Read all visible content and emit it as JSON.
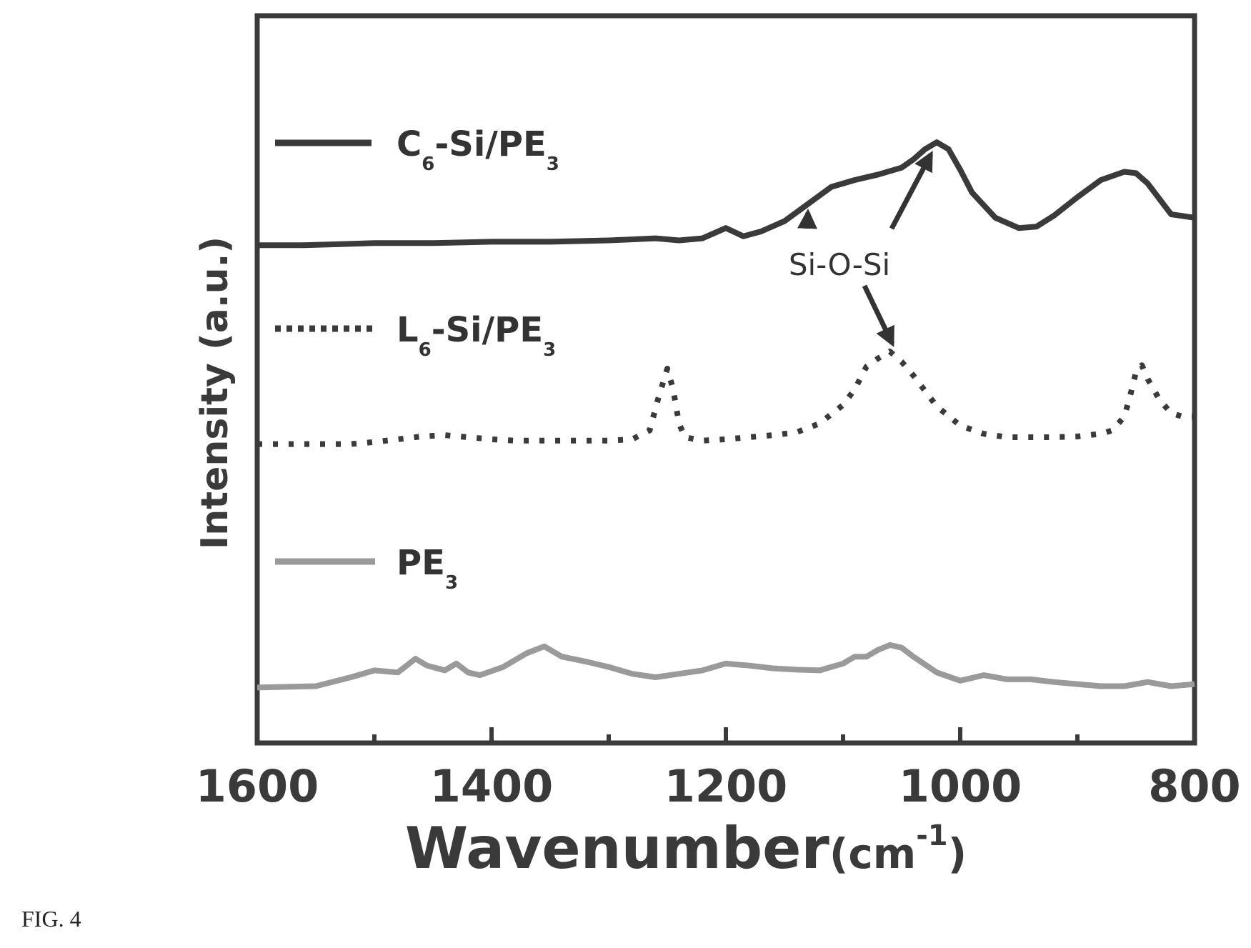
{
  "caption": "FIG. 4",
  "chart_data": {
    "type": "line",
    "title": "",
    "xlabel_main": "Wavenumber",
    "xlabel_unit": "(cm",
    "xlabel_exp": "-1",
    "xlabel_close": ")",
    "ylabel": "Intensity (a.u.)",
    "xlim": [
      1600,
      800
    ],
    "x_reversed": true,
    "x_ticks": [
      "1600",
      "1400",
      "1200",
      "1000",
      "800"
    ],
    "x_tick_values": [
      1600,
      1400,
      1200,
      1000,
      800
    ],
    "x_minor_tick_values": [
      1500,
      1300,
      1100,
      900
    ],
    "ylim": [
      0,
      10
    ],
    "y_ticks_shown": false,
    "legend_placement": "left-inside",
    "series": [
      {
        "name_main": "C",
        "name_sub": "6",
        "name_rest": "-Si/PE",
        "name_sub2": "3",
        "style": "solid",
        "color": "#3a3a3a",
        "x": [
          1600,
          1560,
          1500,
          1450,
          1400,
          1350,
          1300,
          1260,
          1240,
          1220,
          1200,
          1185,
          1170,
          1150,
          1130,
          1110,
          1090,
          1070,
          1050,
          1040,
          1030,
          1020,
          1010,
          1000,
          990,
          970,
          950,
          935,
          920,
          900,
          880,
          860,
          850,
          840,
          820,
          800
        ],
        "y": [
          7.05,
          7.05,
          7.08,
          7.08,
          7.1,
          7.1,
          7.12,
          7.15,
          7.12,
          7.15,
          7.3,
          7.18,
          7.25,
          7.4,
          7.65,
          7.9,
          8.0,
          8.08,
          8.18,
          8.3,
          8.45,
          8.55,
          8.45,
          8.15,
          7.82,
          7.45,
          7.3,
          7.32,
          7.48,
          7.75,
          8.0,
          8.12,
          8.1,
          7.95,
          7.5,
          7.45
        ]
      },
      {
        "name_main": "L",
        "name_sub": "6",
        "name_rest": "-Si/PE",
        "name_sub2": "3",
        "style": "dotted",
        "color": "#3a3a3a",
        "x": [
          1600,
          1560,
          1520,
          1500,
          1480,
          1460,
          1440,
          1420,
          1400,
          1380,
          1360,
          1340,
          1320,
          1300,
          1280,
          1265,
          1258,
          1250,
          1245,
          1240,
          1235,
          1220,
          1200,
          1180,
          1160,
          1140,
          1120,
          1100,
          1090,
          1080,
          1070,
          1060,
          1050,
          1040,
          1020,
          1000,
          980,
          960,
          940,
          920,
          900,
          880,
          870,
          860,
          855,
          850,
          845,
          840,
          830,
          820,
          810,
          800
        ],
        "y": [
          4.15,
          4.15,
          4.15,
          4.18,
          4.22,
          4.26,
          4.28,
          4.25,
          4.22,
          4.2,
          4.2,
          4.2,
          4.2,
          4.2,
          4.22,
          4.35,
          4.8,
          5.25,
          4.95,
          4.45,
          4.25,
          4.2,
          4.22,
          4.25,
          4.28,
          4.32,
          4.45,
          4.72,
          4.95,
          5.28,
          5.4,
          5.5,
          5.35,
          5.15,
          4.7,
          4.42,
          4.3,
          4.25,
          4.25,
          4.25,
          4.26,
          4.3,
          4.35,
          4.55,
          4.85,
          5.2,
          5.3,
          5.1,
          4.8,
          4.6,
          4.55,
          4.55
        ]
      },
      {
        "name_main": "PE",
        "name_sub": "",
        "name_rest": "",
        "name_sub2": "3",
        "style": "solid",
        "color": "#9a9a9a",
        "x": [
          1600,
          1550,
          1520,
          1500,
          1480,
          1465,
          1455,
          1440,
          1430,
          1420,
          1410,
          1390,
          1370,
          1355,
          1340,
          1320,
          1300,
          1280,
          1260,
          1240,
          1220,
          1200,
          1180,
          1160,
          1140,
          1120,
          1100,
          1090,
          1080,
          1070,
          1060,
          1050,
          1040,
          1020,
          1000,
          980,
          960,
          940,
          920,
          900,
          880,
          860,
          840,
          820,
          800
        ],
        "y": [
          0.6,
          0.62,
          0.75,
          0.85,
          0.82,
          1.02,
          0.92,
          0.85,
          0.95,
          0.82,
          0.78,
          0.9,
          1.1,
          1.2,
          1.05,
          0.98,
          0.9,
          0.8,
          0.75,
          0.8,
          0.85,
          0.95,
          0.92,
          0.88,
          0.86,
          0.85,
          0.95,
          1.05,
          1.05,
          1.15,
          1.22,
          1.18,
          1.05,
          0.82,
          0.7,
          0.78,
          0.72,
          0.72,
          0.68,
          0.65,
          0.62,
          0.62,
          0.68,
          0.62,
          0.65
        ]
      }
    ],
    "annotations": [
      {
        "text": "Si-O-Si",
        "arrows_to_x": [
          1130,
          1025,
          1058
        ]
      }
    ]
  }
}
